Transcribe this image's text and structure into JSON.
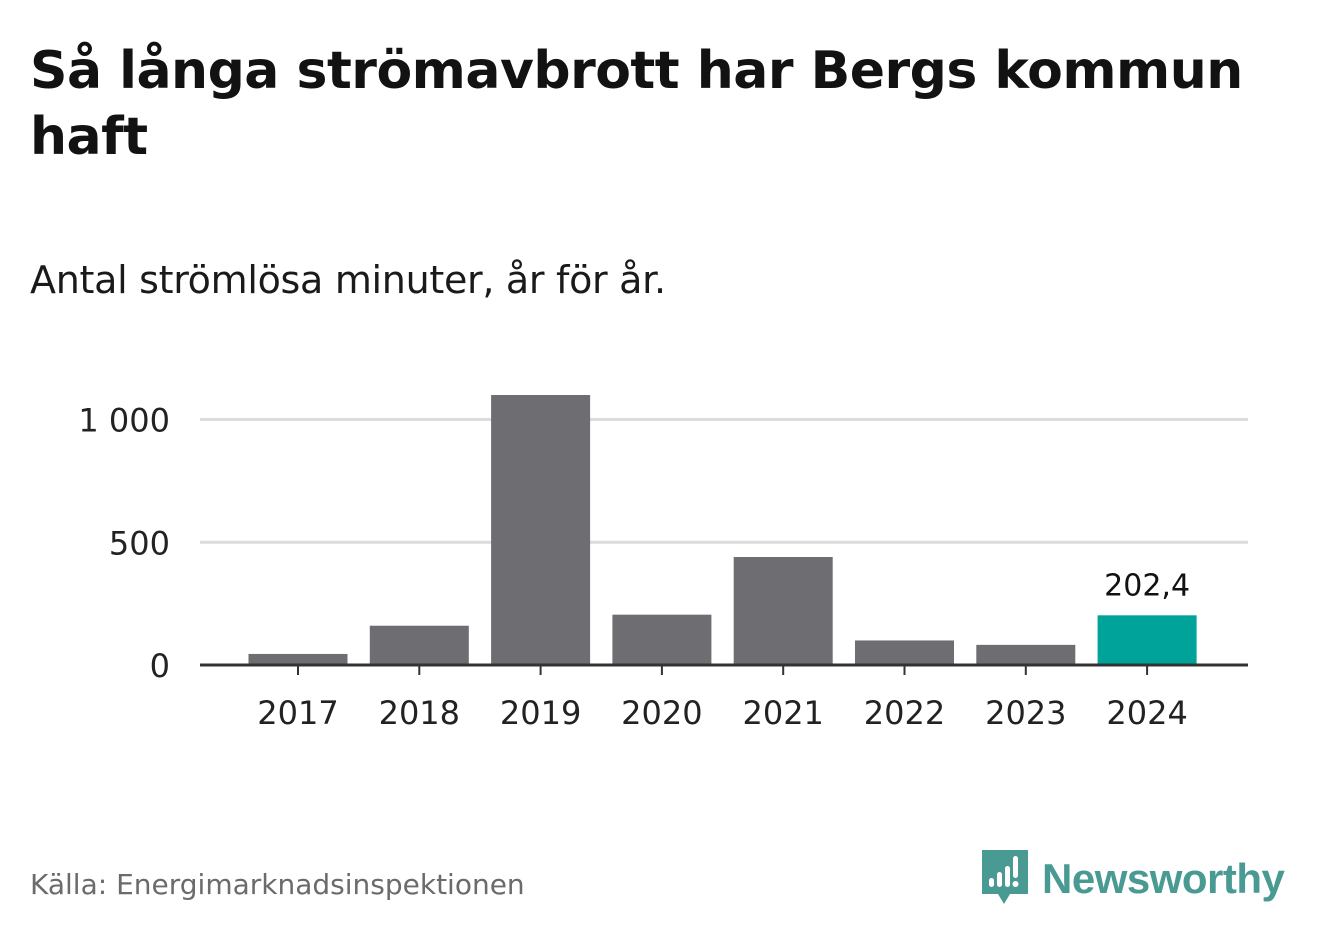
{
  "header": {
    "title": "Så långa strömavbrott har Bergs kommun haft",
    "subtitle": "Antal strömlösa minuter, år för år."
  },
  "footer": {
    "source": "Källa: Energimarknadsinspektionen",
    "brand": "Newsworthy"
  },
  "colors": {
    "bar": "#6e6d72",
    "highlight": "#00a39a",
    "grid": "#dcdcdc",
    "axis": "#333333",
    "brand": "#4a9a94"
  },
  "icons": {
    "brand_logo": "newsworthy-logo-icon"
  },
  "chart_data": {
    "type": "bar",
    "categories": [
      "2017",
      "2018",
      "2019",
      "2020",
      "2021",
      "2022",
      "2023",
      "2024"
    ],
    "values": [
      45,
      160,
      1100,
      205,
      440,
      100,
      82,
      202.4
    ],
    "highlight_index": 7,
    "highlight_label": "202,4",
    "yticks": [
      0,
      500,
      1000
    ],
    "ytick_labels": [
      "0",
      "500",
      "1 000"
    ],
    "ylim": [
      0,
      1100
    ],
    "grid": true,
    "xlabel": "",
    "ylabel": ""
  }
}
